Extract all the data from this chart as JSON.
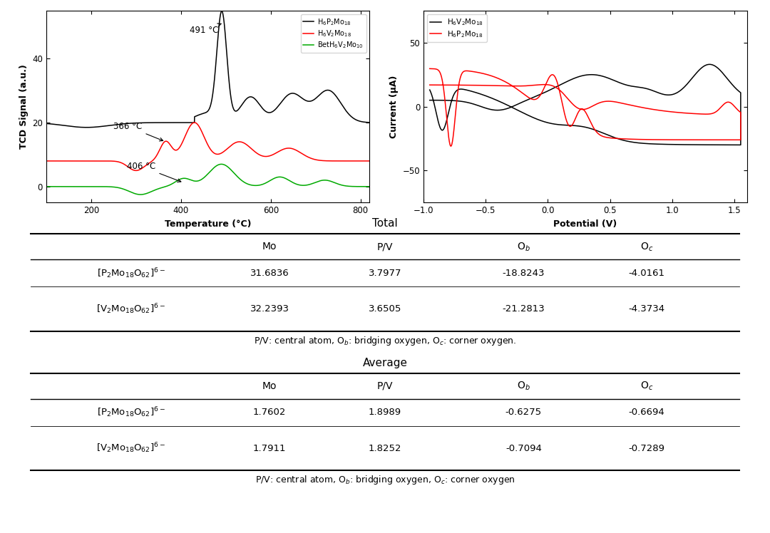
{
  "tcd_xlim": [
    100,
    820
  ],
  "tcd_ylim": [
    -5,
    55
  ],
  "tcd_yticks": [
    0,
    20,
    40
  ],
  "tcd_xticks": [
    200,
    400,
    600,
    800
  ],
  "tcd_xlabel": "Temperature (°C)",
  "tcd_ylabel": "TCD Signal (a.u.)",
  "cv_xlim": [
    -1.0,
    1.6
  ],
  "cv_ylim": [
    -75,
    75
  ],
  "cv_yticks": [
    -50,
    0,
    50
  ],
  "cv_xticks": [
    -1.0,
    -0.5,
    0.0,
    0.5,
    1.0,
    1.5
  ],
  "cv_xlabel": "Potential (V)",
  "cv_ylabel": "Current (μA)",
  "legend1_labels": [
    "H$_6$P$_2$Mo$_{18}$",
    "H$_6$V$_2$Mo$_{18}$",
    "BetH$_6$V$_2$Mo$_{10}$"
  ],
  "legend1_colors": [
    "black",
    "red",
    "green"
  ],
  "legend2_labels": [
    "H$_6$V$_2$Mo$_{18}$",
    "H$_6$P$_2$Mo$_{18}$"
  ],
  "legend2_colors": [
    "black",
    "red"
  ],
  "total_title": "Total",
  "total_headers": [
    "Mo",
    "P/V",
    "O$_b$",
    "O$_c$"
  ],
  "total_row1_label": "[P$_2$Mo$_{18}$O$_{62}$]$^{6-}$",
  "total_row1": [
    "31.6836",
    "3.7977",
    "-18.8243",
    "-4.0161"
  ],
  "total_row2_label": "[V$_2$Mo$_{18}$O$_{62}$]$^{6-}$",
  "total_row2": [
    "32.2393",
    "3.6505",
    "-21.2813",
    "-4.3734"
  ],
  "total_footnote": "P/V: central atom, O$_b$: bridging oxygen, O$_c$: corner oxygen.",
  "avg_title": "Average",
  "avg_headers": [
    "Mo",
    "P/V",
    "O$_b$",
    "O$_c$"
  ],
  "avg_row1_label": "[P$_2$Mo$_{18}$O$_{62}$]$^{6-}$",
  "avg_row1": [
    "1.7602",
    "1.8989",
    "-0.6275",
    "-0.6694"
  ],
  "avg_row2_label": "[V$_2$Mo$_{18}$O$_{62}$]$^{6-}$",
  "avg_row2": [
    "1.7911",
    "1.8252",
    "-0.7094",
    "-0.7289"
  ],
  "avg_footnote": "P/V: central atom, O$_b$: bridging oxygen, O$_c$: corner oxygen",
  "bg_color": "#ffffff"
}
